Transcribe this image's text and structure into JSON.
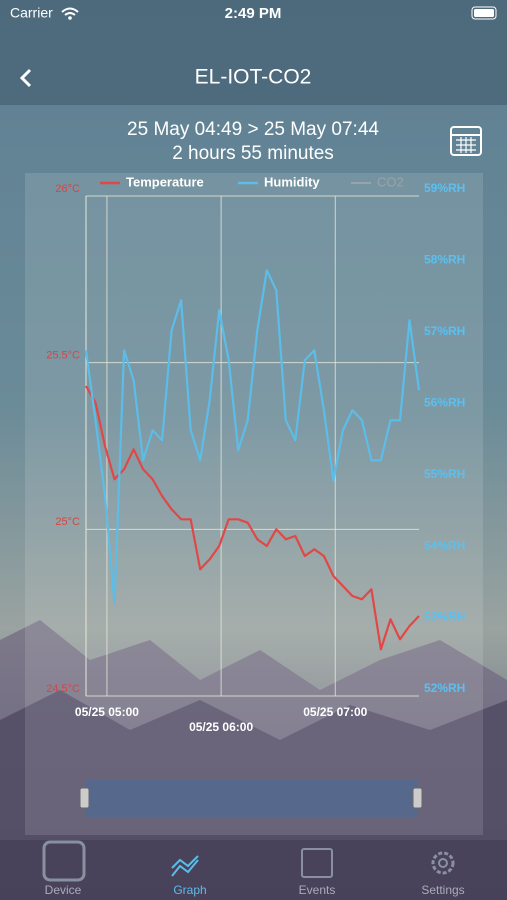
{
  "status_bar": {
    "carrier": "Carrier",
    "time": "2:49 PM"
  },
  "nav": {
    "title": "EL-IOT-CO2"
  },
  "range": {
    "period": "25 May  04:49 > 25 May  07:44",
    "duration": "2 hours 55 minutes"
  },
  "chart_data": {
    "type": "line",
    "x": [
      "05/25 04:49",
      "05/25 04:54",
      "05/25 04:59",
      "05/25 05:04",
      "05/25 05:09",
      "05/25 05:14",
      "05/25 05:19",
      "05/25 05:24",
      "05/25 05:29",
      "05/25 05:34",
      "05/25 05:39",
      "05/25 05:44",
      "05/25 05:49",
      "05/25 05:54",
      "05/25 05:59",
      "05/25 06:04",
      "05/25 06:09",
      "05/25 06:14",
      "05/25 06:19",
      "05/25 06:24",
      "05/25 06:29",
      "05/25 06:34",
      "05/25 06:39",
      "05/25 06:44",
      "05/25 06:49",
      "05/25 06:54",
      "05/25 06:59",
      "05/25 07:04",
      "05/25 07:09",
      "05/25 07:14",
      "05/25 07:19",
      "05/25 07:24",
      "05/25 07:29",
      "05/25 07:34",
      "05/25 07:39",
      "05/25 07:44"
    ],
    "series": [
      {
        "name": "Temperature",
        "color": "#e04848",
        "axis": "y",
        "values": [
          25.43,
          25.38,
          25.25,
          25.15,
          25.18,
          25.24,
          25.18,
          25.15,
          25.1,
          25.06,
          25.03,
          25.03,
          24.88,
          24.91,
          24.95,
          25.03,
          25.03,
          25.02,
          24.97,
          24.95,
          25.0,
          24.97,
          24.98,
          24.92,
          24.94,
          24.92,
          24.86,
          24.83,
          24.8,
          24.79,
          24.82,
          24.64,
          24.73,
          24.67,
          24.71,
          24.74
        ]
      },
      {
        "name": "Humidity",
        "color": "#5bbde8",
        "axis": "y2",
        "values": [
          56.84,
          55.86,
          54.8,
          53.3,
          56.84,
          56.42,
          55.3,
          55.72,
          55.58,
          57.12,
          57.54,
          55.72,
          55.3,
          56.14,
          57.4,
          56.7,
          55.44,
          55.86,
          57.12,
          57.96,
          57.68,
          55.86,
          55.58,
          56.7,
          56.84,
          56.0,
          55.02,
          55.72,
          56.0,
          55.86,
          55.3,
          55.3,
          55.86,
          55.86,
          57.26,
          56.28
        ]
      }
    ],
    "hidden_series": [
      {
        "name": "CO2",
        "color": "#9aa3a8"
      }
    ],
    "xlim": [
      "05/25 04:49",
      "05/25 07:44"
    ],
    "xticks": [
      "05/25 05:00",
      "05/25 06:00",
      "05/25 07:00"
    ],
    "ylim": [
      24.5,
      26
    ],
    "yticks": [
      {
        "value": 26,
        "label": "26°C"
      },
      {
        "value": 25.5,
        "label": "25.5°C"
      },
      {
        "value": 25,
        "label": "25°C"
      },
      {
        "value": 24.5,
        "label": "24.5°C"
      }
    ],
    "y2lim": [
      52,
      59
    ],
    "y2ticks": [
      {
        "value": 59,
        "label": "59%RH"
      },
      {
        "value": 58,
        "label": "58%RH"
      },
      {
        "value": 57,
        "label": "57%RH"
      },
      {
        "value": 56,
        "label": "56%RH"
      },
      {
        "value": 55,
        "label": "55%RH"
      },
      {
        "value": 54,
        "label": "54%RH"
      },
      {
        "value": 53,
        "label": "53%RH"
      },
      {
        "value": 52,
        "label": "52%RH"
      }
    ],
    "grid": true
  },
  "tabs": [
    {
      "label": "Device"
    },
    {
      "label": "Graph",
      "active": true
    },
    {
      "label": "Events"
    },
    {
      "label": "Settings"
    }
  ]
}
